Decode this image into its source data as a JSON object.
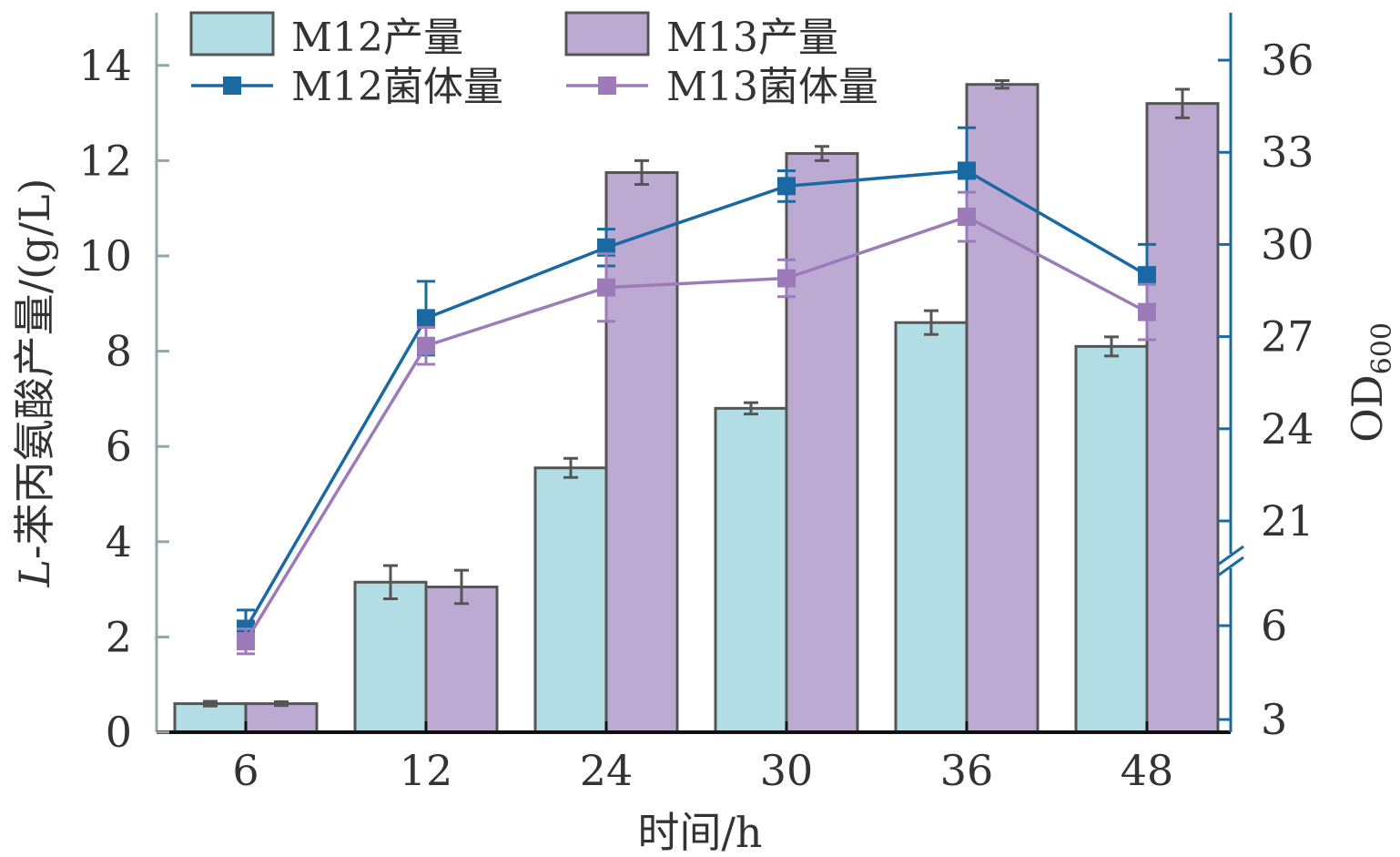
{
  "chart_data": {
    "type": "bar",
    "categories": [
      "6",
      "12",
      "24",
      "30",
      "36",
      "48"
    ],
    "xlabel": "时间/h",
    "ylabel": "L-苯丙氨酸产量/(g/L)",
    "ylabel_italic_part": "L",
    "ylabel_rest": "-苯丙氨酸产量/(g/L)",
    "y2label_main": "OD",
    "y2label_sub": "600",
    "ylim": [
      0,
      14.5
    ],
    "yticks": [
      0,
      2,
      4,
      6,
      8,
      10,
      12,
      14
    ],
    "y2ticks": [
      3,
      6,
      21,
      24,
      27,
      30,
      33,
      36
    ],
    "y2_axis_break": [
      7.5,
      19.5
    ],
    "grid": false,
    "legend_position": "top-left",
    "series": [
      {
        "name": "M12产量",
        "kind": "bar",
        "axis": "left",
        "color": "#b3dde4",
        "values": [
          0.6,
          3.15,
          5.55,
          6.8,
          8.6,
          8.1
        ],
        "errors": [
          0.05,
          0.35,
          0.2,
          0.12,
          0.25,
          0.2
        ]
      },
      {
        "name": "M13产量",
        "kind": "bar",
        "axis": "left",
        "color": "#bcaad3",
        "values": [
          0.6,
          3.05,
          11.75,
          12.15,
          13.6,
          13.2
        ],
        "errors": [
          0.04,
          0.35,
          0.25,
          0.15,
          0.08,
          0.3
        ]
      },
      {
        "name": "M12菌体量",
        "kind": "line",
        "axis": "right",
        "color": "#1a69a3",
        "values": [
          5.9,
          27.6,
          29.9,
          31.9,
          32.4,
          29.0
        ],
        "errors": [
          0.6,
          1.2,
          0.6,
          0.5,
          1.4,
          1.0
        ]
      },
      {
        "name": "M13菌体量",
        "kind": "line",
        "axis": "right",
        "color": "#9d7bb8",
        "values": [
          5.5,
          26.7,
          28.6,
          28.9,
          30.9,
          27.8
        ],
        "errors": [
          0.4,
          0.6,
          1.1,
          0.6,
          0.8,
          0.9
        ]
      }
    ]
  }
}
